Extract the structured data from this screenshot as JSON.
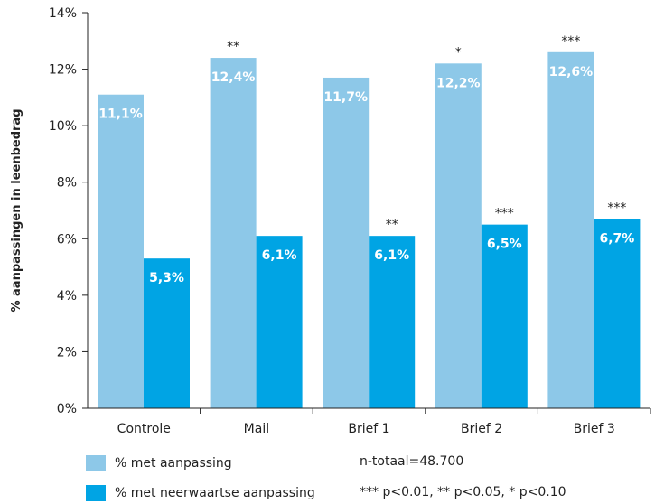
{
  "chart_data": {
    "type": "bar",
    "ylabel": "% aanpassingen in leenbedrag",
    "xlabel": "",
    "ylim": [
      0,
      14
    ],
    "yticks": [
      0,
      2,
      4,
      6,
      8,
      10,
      12,
      14
    ],
    "ytick_labels": [
      "0%",
      "2%",
      "4%",
      "6%",
      "8%",
      "10%",
      "12%",
      "14%"
    ],
    "categories": [
      "Controle",
      "Mail",
      "Brief 1",
      "Brief 2",
      "Brief 3"
    ],
    "series": [
      {
        "name": "% met aanpassing",
        "color": "#8dc8e8",
        "values": [
          11.1,
          12.4,
          11.7,
          12.2,
          12.6
        ],
        "labels": [
          "11,1%",
          "12,4%",
          "11,7%",
          "12,2%",
          "12,6%"
        ],
        "significance": [
          "",
          "**",
          "",
          "*",
          "***"
        ]
      },
      {
        "name": "% met neerwaartse aanpassing",
        "color": "#00a4e4",
        "values": [
          5.3,
          6.1,
          6.1,
          6.5,
          6.7
        ],
        "labels": [
          "5,3%",
          "6,1%",
          "6,1%",
          "6,5%",
          "6,7%"
        ],
        "significance": [
          "",
          "",
          "**",
          "***",
          "***"
        ]
      }
    ],
    "legend_position": "bottom-left"
  },
  "notes": {
    "n_total": "n-totaal=48.700",
    "significance_key": "*** p<0.01, ** p<0.05, * p<0.10"
  }
}
